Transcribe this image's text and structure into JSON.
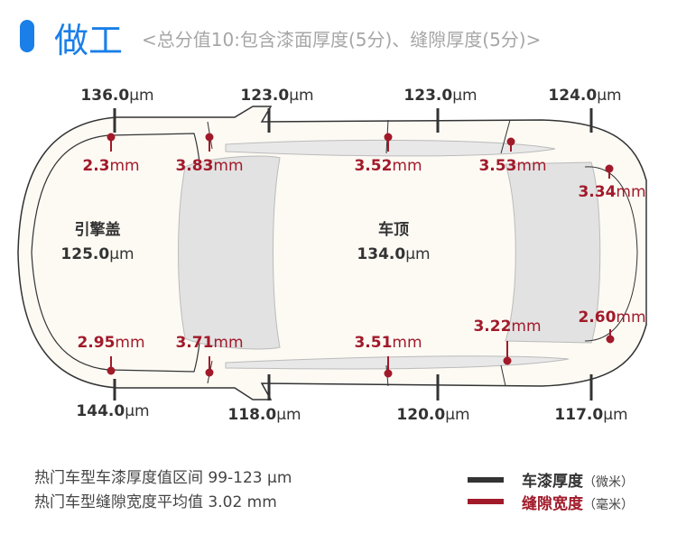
{
  "header": {
    "title": "做工",
    "subtitle": "<总分值10:包含漆面厚度(5分)、缝隙厚度(5分)>"
  },
  "colors": {
    "accent": "#1a7fe8",
    "thickness": "#333333",
    "gap": "#a11a2a"
  },
  "thickness_top": [
    {
      "v": "136.0",
      "u": "μm"
    },
    {
      "v": "123.0",
      "u": "μm"
    },
    {
      "v": "123.0",
      "u": "μm"
    },
    {
      "v": "124.0",
      "u": "μm"
    }
  ],
  "thickness_bottom": [
    {
      "v": "144.0",
      "u": "μm"
    },
    {
      "v": "118.0",
      "u": "μm"
    },
    {
      "v": "120.0",
      "u": "μm"
    },
    {
      "v": "117.0",
      "u": "μm"
    }
  ],
  "gaps": [
    {
      "v": "2.3",
      "u": "mm"
    },
    {
      "v": "3.83",
      "u": "mm"
    },
    {
      "v": "3.52",
      "u": "mm"
    },
    {
      "v": "3.53",
      "u": "mm"
    },
    {
      "v": "3.34",
      "u": "mm"
    },
    {
      "v": "2.95",
      "u": "mm"
    },
    {
      "v": "3.71",
      "u": "mm"
    },
    {
      "v": "3.51",
      "u": "mm"
    },
    {
      "v": "3.22",
      "u": "mm"
    },
    {
      "v": "2.60",
      "u": "mm"
    }
  ],
  "hood": {
    "name": "引擎盖",
    "v": "125.0",
    "u": "μm"
  },
  "roof": {
    "name": "车顶",
    "v": "134.0",
    "u": "μm"
  },
  "footer": {
    "line1": "热门车型车漆厚度值区间 99-123 μm",
    "line2": "热门车型缝隙宽度平均值 3.02 mm"
  },
  "legend": [
    {
      "label": "车漆厚度",
      "unit": "（微米）"
    },
    {
      "label": "缝隙宽度",
      "unit": "（毫米）"
    }
  ]
}
